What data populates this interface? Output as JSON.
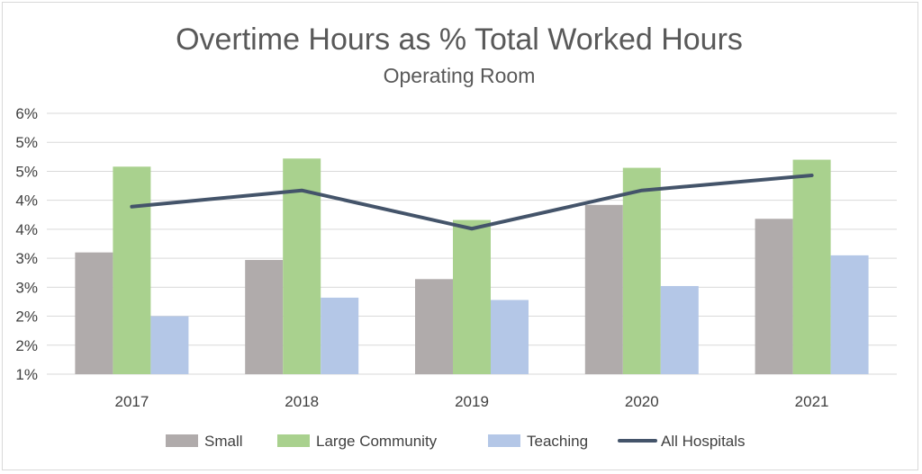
{
  "chart_data": {
    "type": "bar",
    "title": "Overtime Hours as % Total Worked Hours",
    "subtitle": "Operating Room",
    "categories": [
      "2017",
      "2018",
      "2019",
      "2020",
      "2021"
    ],
    "y_ticks": [
      {
        "value": 1.0,
        "label": "1%"
      },
      {
        "value": 1.5,
        "label": "2%"
      },
      {
        "value": 2.0,
        "label": "2%"
      },
      {
        "value": 2.5,
        "label": "3%"
      },
      {
        "value": 3.0,
        "label": "3%"
      },
      {
        "value": 3.5,
        "label": "4%"
      },
      {
        "value": 4.0,
        "label": "4%"
      },
      {
        "value": 4.5,
        "label": "5%"
      },
      {
        "value": 5.0,
        "label": "5%"
      },
      {
        "value": 5.5,
        "label": "6%"
      }
    ],
    "ylim": [
      1.0,
      5.5
    ],
    "grid": true,
    "legend_position": "bottom",
    "series": [
      {
        "name": "Small",
        "type": "bar",
        "color": "#b0abab",
        "values": [
          3.1,
          2.97,
          2.64,
          3.92,
          3.68
        ]
      },
      {
        "name": "Large Community",
        "type": "bar",
        "color": "#a9d18e",
        "values": [
          4.58,
          4.72,
          3.66,
          4.56,
          4.7
        ]
      },
      {
        "name": "Teaching",
        "type": "bar",
        "color": "#b4c7e7",
        "values": [
          2.0,
          2.32,
          2.28,
          2.52,
          3.05
        ]
      },
      {
        "name": "All Hospitals",
        "type": "line",
        "color": "#44546a",
        "values": [
          3.89,
          4.17,
          3.51,
          4.17,
          4.43
        ]
      }
    ]
  }
}
